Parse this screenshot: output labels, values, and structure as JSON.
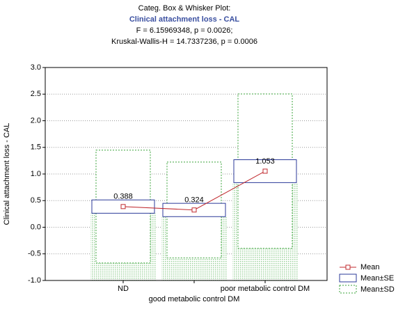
{
  "chart_data": {
    "type": "categorized-box",
    "title": [
      "Categ. Box & Whisker Plot:",
      "Clinical attachment loss - CAL",
      "F = 6.15969348, p = 0.0026;",
      "Kruskal-Wallis-H = 14.7337236, p = 0.0006"
    ],
    "y_label": "Clinical attachment loss - CAL",
    "categories": [
      "ND",
      "good metabolic control DM",
      "poor metabolic control DM"
    ],
    "means": [
      0.388,
      0.324,
      1.053
    ],
    "se": [
      0.125,
      0.125,
      0.215
    ],
    "sd": [
      1.06,
      0.9,
      1.45
    ],
    "ylim": [
      -1,
      3
    ],
    "yticks": [
      {
        "value": -1,
        "label": "-1.0"
      },
      -0.5,
      {
        "value": 0,
        "label": "0.0"
      },
      0.5,
      {
        "value": 1,
        "label": "1.0"
      },
      1.5,
      {
        "value": 2,
        "label": "2.0"
      },
      2.5,
      {
        "value": 3,
        "label": "3.0"
      }
    ],
    "grid": true,
    "legend": {
      "position": "bottom-right",
      "entries": [
        "Mean",
        "Mean±SE",
        "Mean±SD"
      ]
    },
    "colors": {
      "mean": "#c0282d",
      "se": "#2b3a99",
      "sd": "#3aa33a"
    }
  }
}
